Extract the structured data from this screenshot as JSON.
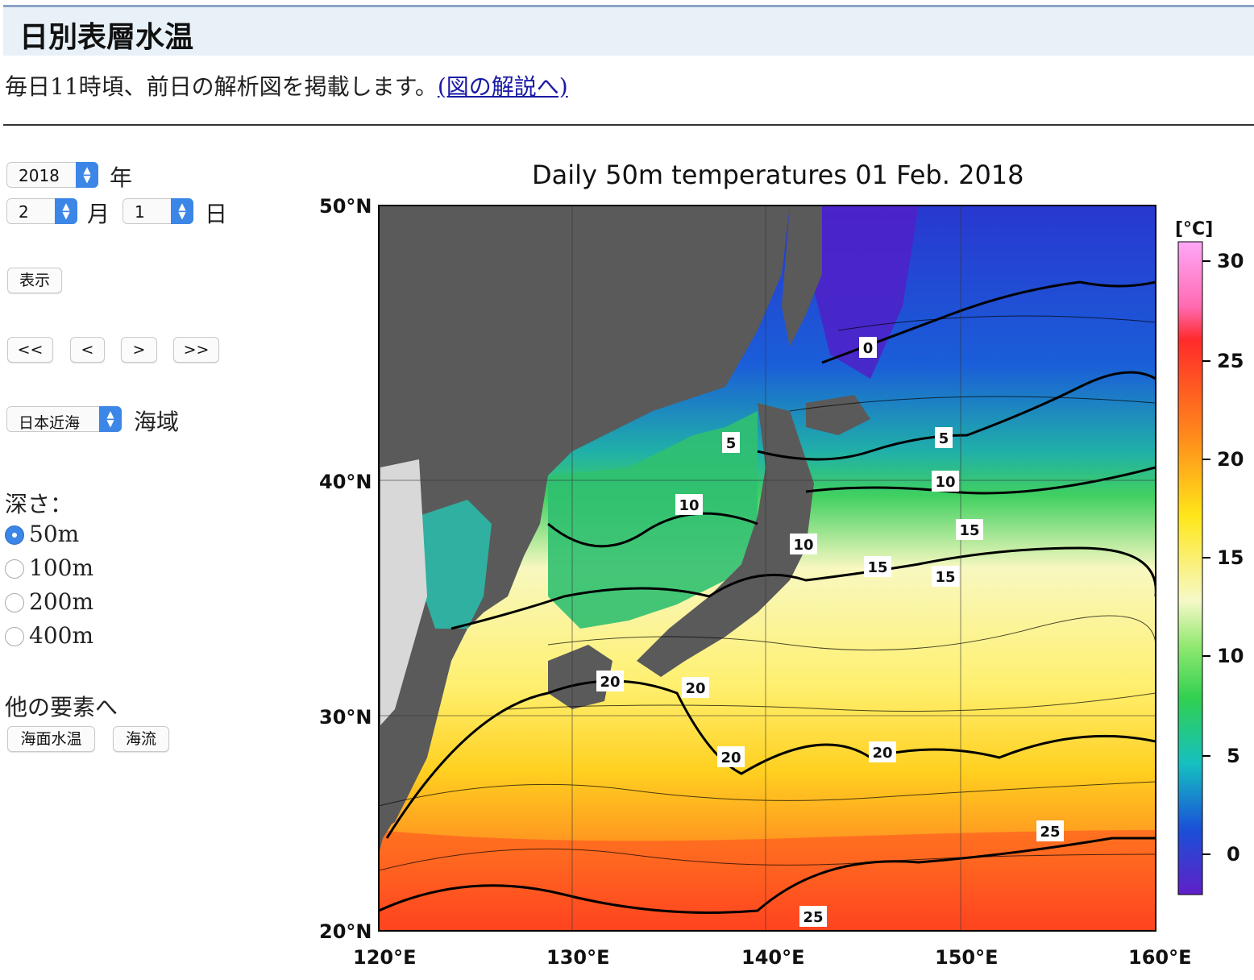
{
  "page": {
    "title": "日別表層水温",
    "intro_text": "毎日11時頃、前日の解析図を掲載します。",
    "intro_link": "(図の解説へ)"
  },
  "controls": {
    "year": {
      "value": "2018",
      "suffix": "年"
    },
    "month": {
      "value": "2",
      "suffix": "月"
    },
    "day": {
      "value": "1",
      "suffix": "日"
    },
    "show_button": "表示",
    "nav": {
      "first": "<<",
      "prev": "<",
      "next": ">",
      "last": ">>"
    },
    "region": {
      "value": "日本近海",
      "suffix": "海域"
    },
    "depth_label": "深さ：",
    "depths": [
      {
        "label": "50m",
        "selected": true
      },
      {
        "label": "100m",
        "selected": false
      },
      {
        "label": "200m",
        "selected": false
      },
      {
        "label": "400m",
        "selected": false
      }
    ],
    "other_label": "他の要素へ",
    "other_buttons": [
      "海面水温",
      "海流"
    ]
  },
  "map": {
    "title": "Daily 50m temperatures 01 Feb. 2018",
    "lat_labels": [
      "50°N",
      "40°N",
      "30°N",
      "20°N"
    ],
    "lon_labels": [
      "120°E",
      "130°E",
      "140°E",
      "150°E",
      "160°E"
    ],
    "colorbar": {
      "unit": "[°C]",
      "ticks": [
        "30",
        "25",
        "20",
        "15",
        "10",
        "5",
        "0"
      ],
      "colors": [
        "#ff9cf3",
        "#ff2a2a",
        "#ff8c1a",
        "#ffe61a",
        "#f6f9c8",
        "#30d050",
        "#15c0c0",
        "#1a50d8",
        "#6020c8"
      ]
    },
    "contour_labels": [
      "0",
      "5",
      "5",
      "10",
      "10",
      "10",
      "15",
      "15",
      "15",
      "20",
      "20",
      "20",
      "20",
      "25",
      "25"
    ],
    "colors": {
      "land": "#5a5a5a",
      "ice": "#d8d8d8"
    }
  }
}
